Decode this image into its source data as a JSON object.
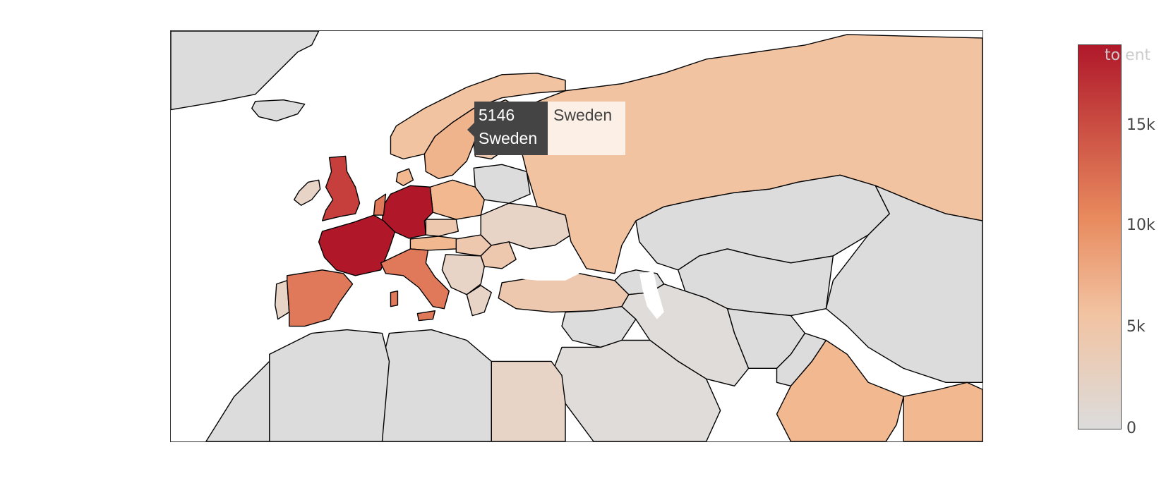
{
  "colorscale": {
    "min_color": "#dcdcdc",
    "mid_low_color": "#f2c3a1",
    "mid_color": "#e88a5e",
    "max_color": "#b0182a",
    "ticks": [
      "0",
      "5k",
      "10k",
      "15k"
    ],
    "title": "to ent"
  },
  "hover": {
    "value": "5146",
    "country": "Sweden",
    "side_label": "Sweden"
  },
  "map_data": {
    "type": "choropleth",
    "countries": [
      {
        "name": "France",
        "color": "#b0182a"
      },
      {
        "name": "Germany",
        "color": "#b0182a"
      },
      {
        "name": "United Kingdom",
        "color": "#c63f3c"
      },
      {
        "name": "Spain",
        "color": "#e0785a"
      },
      {
        "name": "Italy",
        "color": "#e0785a"
      },
      {
        "name": "Russia",
        "color": "#f2c3a1"
      },
      {
        "name": "Sweden",
        "color": "#f0b48c"
      },
      {
        "name": "Norway",
        "color": "#f2c3a1"
      },
      {
        "name": "Poland",
        "color": "#f2b991"
      },
      {
        "name": "India",
        "color": "#f2b991"
      },
      {
        "name": "Ukraine",
        "color": "#e8d4c7"
      },
      {
        "name": "Turkey",
        "color": "#eec8ae"
      },
      {
        "name": "Egypt",
        "color": "#e8d4c7"
      },
      {
        "name": "Iran",
        "color": "#e0dcda"
      }
    ]
  }
}
